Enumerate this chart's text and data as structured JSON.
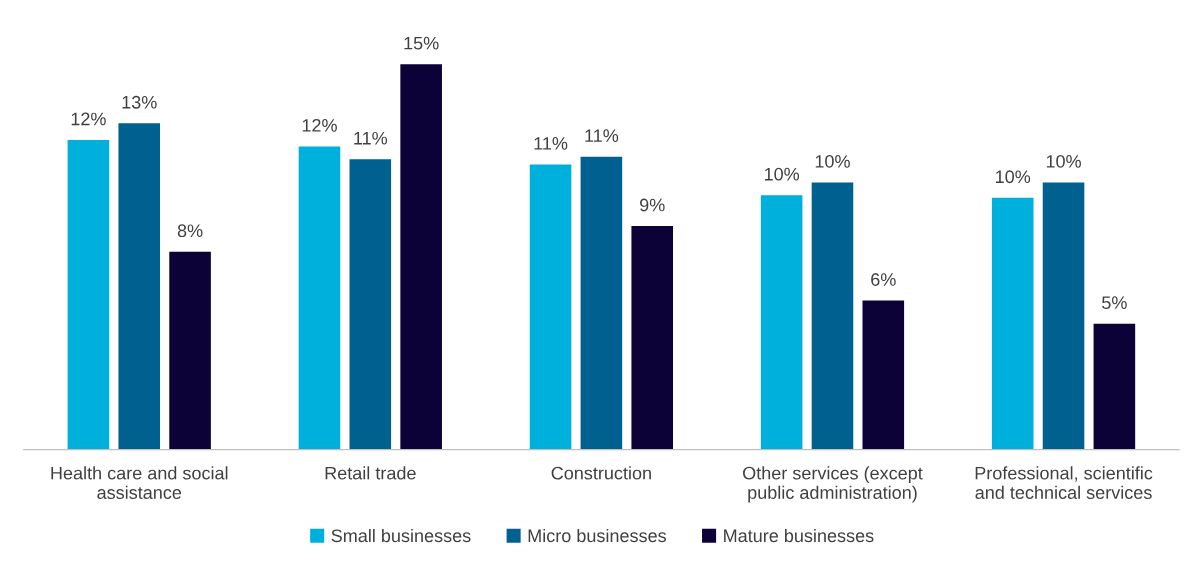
{
  "chart_data": {
    "type": "bar",
    "categories": [
      "Health care and social\nassistance",
      "Retail trade",
      "Construction",
      "Other services (except\npublic administration)",
      "Professional, scientific\nand technical services"
    ],
    "series": [
      {
        "name": "Small businesses",
        "color": "#00b0dc",
        "values": [
          12.05,
          11.8,
          11.1,
          9.9,
          9.8
        ],
        "value_labels": [
          "12%",
          "12%",
          "11%",
          "10%",
          "10%"
        ]
      },
      {
        "name": "Micro businesses",
        "color": "#00608f",
        "values": [
          12.7,
          11.3,
          11.4,
          10.4,
          10.4
        ],
        "value_labels": [
          "13%",
          "11%",
          "11%",
          "10%",
          "10%"
        ]
      },
      {
        "name": "Mature businesses",
        "color": "#0d0238",
        "values": [
          7.7,
          15.0,
          8.7,
          5.8,
          4.9
        ],
        "value_labels": [
          "8%",
          "15%",
          "9%",
          "6%",
          "5%"
        ]
      }
    ],
    "legend": "bottom",
    "grid": false
  }
}
